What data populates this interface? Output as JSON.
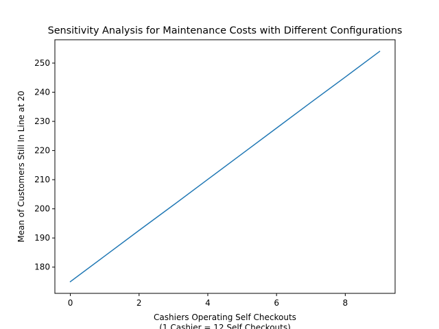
{
  "chart_data": {
    "type": "line",
    "title": "Sensitivity Analysis for Maintenance Costs with Different Configurations",
    "xlabel_lines": [
      "Cashiers Operating Self Checkouts",
      "(1 Cashier = 12 Self Checkouts)"
    ],
    "ylabel": "Mean of Customers Still In Line at 20",
    "xlim": [
      -0.45,
      9.45
    ],
    "ylim": [
      171,
      258
    ],
    "x_ticks": [
      0,
      2,
      4,
      6,
      8
    ],
    "y_ticks": [
      180,
      190,
      200,
      210,
      220,
      230,
      240,
      250
    ],
    "grid": false,
    "series": [
      {
        "color": "#1f77b4",
        "x": [
          0,
          1,
          2,
          3,
          4,
          5,
          6,
          7,
          8,
          9
        ],
        "y": [
          175,
          183.8,
          192.6,
          201.3,
          210.1,
          218.9,
          227.7,
          236.5,
          245.2,
          254
        ]
      }
    ]
  }
}
